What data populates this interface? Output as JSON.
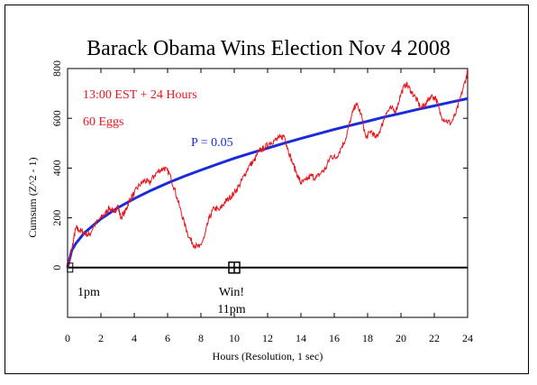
{
  "chart_data": {
    "type": "line",
    "title": "Barack Obama Wins Election Nov 4 2008",
    "xlabel": "Hours (Resolution, 1 sec)",
    "ylabel": "Cumsum (Z^2 - 1)",
    "xlim": [
      0,
      24
    ],
    "ylim": [
      -200,
      800
    ],
    "x_ticks": [
      0,
      2,
      4,
      6,
      8,
      10,
      12,
      14,
      16,
      18,
      20,
      22,
      24
    ],
    "y_ticks": [
      0,
      200,
      400,
      600,
      800
    ],
    "grid": false,
    "annotations": {
      "time_window": "13:00 EST + 24 Hours",
      "eggs": "60 Eggs",
      "p_label": "P = 0.05",
      "start_label": "1pm",
      "win_label": "Win!",
      "win_time": "11pm"
    },
    "markers": [
      {
        "x": 0.15,
        "y": 0
      },
      {
        "x": 10,
        "y": 0
      }
    ],
    "colors": {
      "cumsum": "#e8141c",
      "probability_envelope": "#1a2bdc",
      "baseline": "#000000"
    },
    "series": [
      {
        "x": [
          0,
          0.15,
          0.35,
          0.5,
          0.7,
          1.0,
          1.3,
          1.6,
          2.0,
          2.3,
          2.5,
          2.8,
          3.0,
          3.2,
          3.5,
          3.7,
          4.0,
          4.3,
          4.6,
          4.9,
          5.2,
          5.5,
          5.8,
          6.1,
          6.4,
          6.7,
          7.0,
          7.3,
          7.6,
          7.9,
          8.2,
          8.5,
          8.8,
          9.1,
          9.4,
          9.7,
          10.0,
          10.3,
          10.6,
          10.9,
          11.2,
          11.5,
          11.8,
          12.1,
          12.4,
          12.7,
          13.0,
          13.2,
          13.5,
          13.8,
          14.0,
          14.3,
          14.6,
          14.9,
          15.2,
          15.5,
          15.8,
          16.1,
          16.4,
          16.7,
          17.0,
          17.3,
          17.6,
          17.9,
          18.2,
          18.5,
          18.8,
          19.1,
          19.4,
          19.7,
          20.0,
          20.3,
          20.6,
          20.9,
          21.2,
          21.5,
          21.8,
          22.1,
          22.4,
          22.7,
          23.0,
          23.3,
          23.6,
          23.9,
          24.0
        ],
        "values": [
          10,
          30,
          110,
          160,
          150,
          140,
          130,
          170,
          200,
          220,
          240,
          220,
          250,
          200,
          230,
          270,
          300,
          330,
          350,
          340,
          370,
          390,
          400,
          380,
          320,
          250,
          180,
          120,
          90,
          80,
          120,
          200,
          240,
          230,
          260,
          280,
          300,
          330,
          370,
          410,
          430,
          470,
          480,
          500,
          510,
          520,
          530,
          480,
          420,
          370,
          340,
          350,
          370,
          360,
          380,
          400,
          450,
          440,
          480,
          520,
          600,
          660,
          620,
          520,
          550,
          520,
          560,
          620,
          640,
          630,
          700,
          740,
          710,
          680,
          640,
          660,
          690,
          680,
          610,
          590,
          580,
          620,
          690,
          760,
          790
        ]
      },
      {
        "x": [
          0,
          0.25,
          0.5,
          1,
          2,
          3,
          4,
          5,
          6,
          7,
          8,
          9,
          10,
          11,
          12,
          13,
          14,
          15,
          16,
          17,
          18,
          19,
          20,
          21,
          22,
          23,
          24
        ],
        "values": [
          0,
          69,
          98,
          139,
          196,
          240,
          277,
          310,
          340,
          367,
          392,
          416,
          439,
          460,
          480,
          500,
          519,
          537,
          555,
          572,
          588,
          605,
          620,
          636,
          650,
          665,
          679
        ]
      }
    ]
  }
}
